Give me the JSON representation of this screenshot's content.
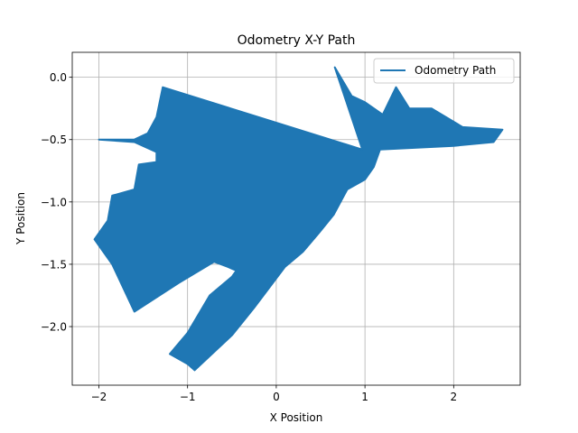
{
  "chart_data": {
    "type": "line",
    "title": "Odometry X-Y Path",
    "xlabel": "X Position",
    "ylabel": "Y Position",
    "xlim": [
      -2.3,
      2.75
    ],
    "ylim": [
      -2.47,
      0.2
    ],
    "x_ticks": [
      -2,
      -1,
      0,
      1,
      2
    ],
    "x_tick_labels": [
      "−2",
      "−1",
      "0",
      "1",
      "2"
    ],
    "y_ticks": [
      0.0,
      -0.5,
      -1.0,
      -1.5,
      -2.0
    ],
    "y_tick_labels": [
      "0.0",
      "−0.5",
      "−1.0",
      "−1.5",
      "−2.0"
    ],
    "grid": true,
    "legend_position": "top-right",
    "series": [
      {
        "name": "Odometry Path",
        "color": "#1f77b4",
        "region_outline": [
          [
            -2.0,
            -0.5
          ],
          [
            -1.6,
            -0.5
          ],
          [
            -1.45,
            -0.45
          ],
          [
            -1.35,
            -0.32
          ],
          [
            -1.28,
            -0.08
          ],
          [
            0.97,
            -0.58
          ],
          [
            0.66,
            0.08
          ],
          [
            0.85,
            -0.15
          ],
          [
            1.0,
            -0.2
          ],
          [
            1.2,
            -0.3
          ],
          [
            1.35,
            -0.08
          ],
          [
            1.5,
            -0.25
          ],
          [
            1.75,
            -0.25
          ],
          [
            2.1,
            -0.4
          ],
          [
            2.55,
            -0.42
          ],
          [
            2.45,
            -0.52
          ],
          [
            2.0,
            -0.55
          ],
          [
            1.17,
            -0.58
          ],
          [
            1.1,
            -0.72
          ],
          [
            1.0,
            -0.82
          ],
          [
            0.8,
            -0.9
          ],
          [
            0.65,
            -1.1
          ],
          [
            0.48,
            -1.25
          ],
          [
            0.3,
            -1.4
          ],
          [
            0.1,
            -1.52
          ],
          [
            -0.25,
            -1.85
          ],
          [
            -0.5,
            -2.07
          ],
          [
            -0.92,
            -2.35
          ],
          [
            -1.0,
            -2.3
          ],
          [
            -1.2,
            -2.22
          ],
          [
            -1.0,
            -2.05
          ],
          [
            -0.75,
            -1.75
          ],
          [
            -0.5,
            -1.6
          ],
          [
            -0.45,
            -1.55
          ],
          [
            -0.55,
            -1.52
          ],
          [
            -0.7,
            -1.48
          ],
          [
            -1.1,
            -1.65
          ],
          [
            -1.6,
            -1.88
          ],
          [
            -1.85,
            -1.5
          ],
          [
            -2.05,
            -1.3
          ],
          [
            -1.9,
            -1.15
          ],
          [
            -1.85,
            -0.95
          ],
          [
            -1.6,
            -0.9
          ],
          [
            -1.55,
            -0.7
          ],
          [
            -1.35,
            -0.68
          ],
          [
            -1.35,
            -0.6
          ],
          [
            -1.6,
            -0.52
          ],
          [
            -2.0,
            -0.5
          ]
        ]
      }
    ]
  }
}
